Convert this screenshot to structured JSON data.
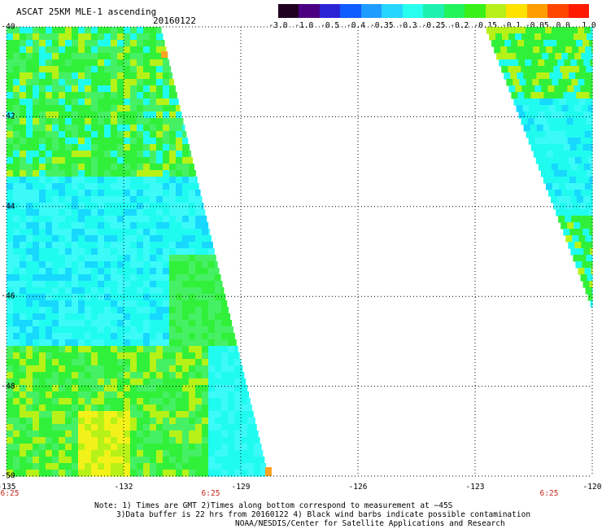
{
  "header": {
    "title": "ASCAT 25KM MLE-1 ascending",
    "date": "20160122"
  },
  "colorbar": {
    "labels": [
      "-3.0",
      "-1.0",
      "-0.5",
      "-0.4",
      "-0.35",
      "-0.3",
      "-0.25",
      "-0.2",
      "-0.15",
      "-0.1",
      "-0.05",
      "0.0",
      "1.0"
    ],
    "colors": [
      "#200020",
      "#4a0080",
      "#2b24d6",
      "#0f5cff",
      "#1f9cff",
      "#27d6ff",
      "#28ffee",
      "#1ef0b0",
      "#22f35a",
      "#3af01a",
      "#b5f01a",
      "#ffe200",
      "#ff9e00",
      "#ff4500",
      "#ff1a00"
    ]
  },
  "map": {
    "lat_labels": [
      "-40",
      "-42",
      "-44",
      "-46",
      "-48",
      "-50"
    ],
    "lon_labels": [
      "-135",
      "-132",
      "-129",
      "-126",
      "-123",
      "-120"
    ],
    "time_labels": [
      "6:25",
      "6:25",
      "6:25"
    ],
    "colors": {
      "cyan": "#20fbf0",
      "cyan_light": "#3cfaf8",
      "blue_cyan": "#17d8ff",
      "green": "#31f03a",
      "green_light": "#46f064",
      "yellow_green": "#b6f217",
      "yellow": "#f2f21a",
      "orange": "#ffa321",
      "time_red": "#c8261e"
    }
  },
  "notes": [
    "Note: 1) Times are GMT 2)Times along bottom correspond to measurement at −45S",
    "3)Data buffer is 22 hrs from 20160122 4) Black wind barbs indicate possible contamination",
    "NOAA/NESDIS/Center for Satellite Applications and Research"
  ]
}
